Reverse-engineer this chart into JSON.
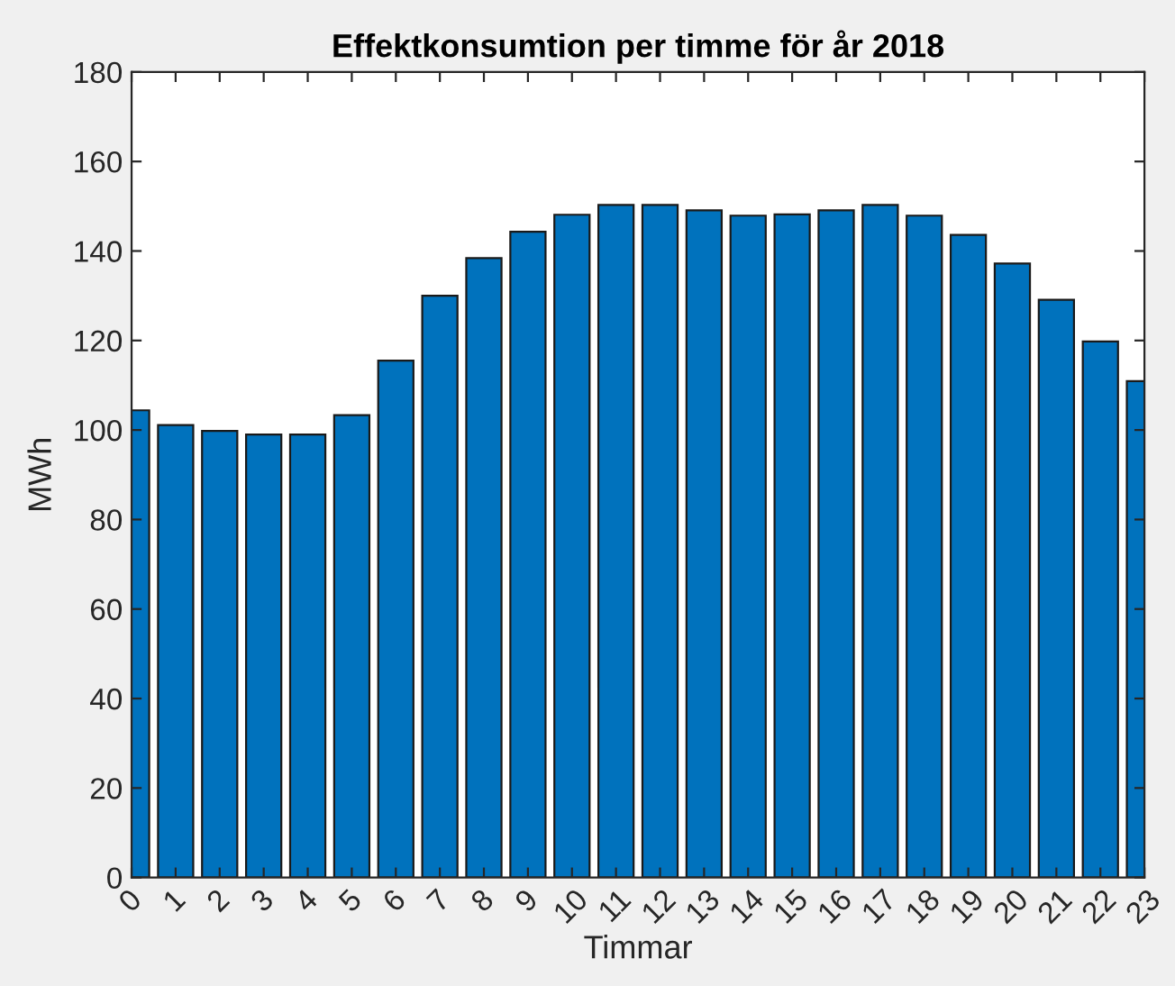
{
  "chart_data": {
    "type": "bar",
    "title": "Effektkonsumtion per timme för år 2018",
    "xlabel": "Timmar",
    "ylabel": "MWh",
    "x": [
      0,
      1,
      2,
      3,
      4,
      5,
      6,
      7,
      8,
      9,
      10,
      11,
      12,
      13,
      14,
      15,
      16,
      17,
      18,
      19,
      20,
      21,
      22,
      23
    ],
    "values": [
      104.4,
      101.1,
      99.8,
      99.0,
      99.0,
      103.3,
      115.5,
      130.0,
      138.4,
      144.3,
      148.1,
      150.3,
      150.3,
      149.1,
      147.9,
      148.2,
      149.1,
      150.3,
      147.9,
      143.6,
      137.2,
      129.1,
      119.8,
      110.9
    ],
    "color": "#0072bd",
    "xlim": [
      0,
      23
    ],
    "xticks": [
      0,
      1,
      2,
      3,
      4,
      5,
      6,
      7,
      8,
      9,
      10,
      11,
      12,
      13,
      14,
      15,
      16,
      17,
      18,
      19,
      20,
      21,
      22,
      23
    ],
    "ylim": [
      0,
      180
    ],
    "yticks": [
      0,
      20,
      40,
      60,
      80,
      100,
      120,
      140,
      160,
      180
    ],
    "grid": false,
    "legend": false
  }
}
